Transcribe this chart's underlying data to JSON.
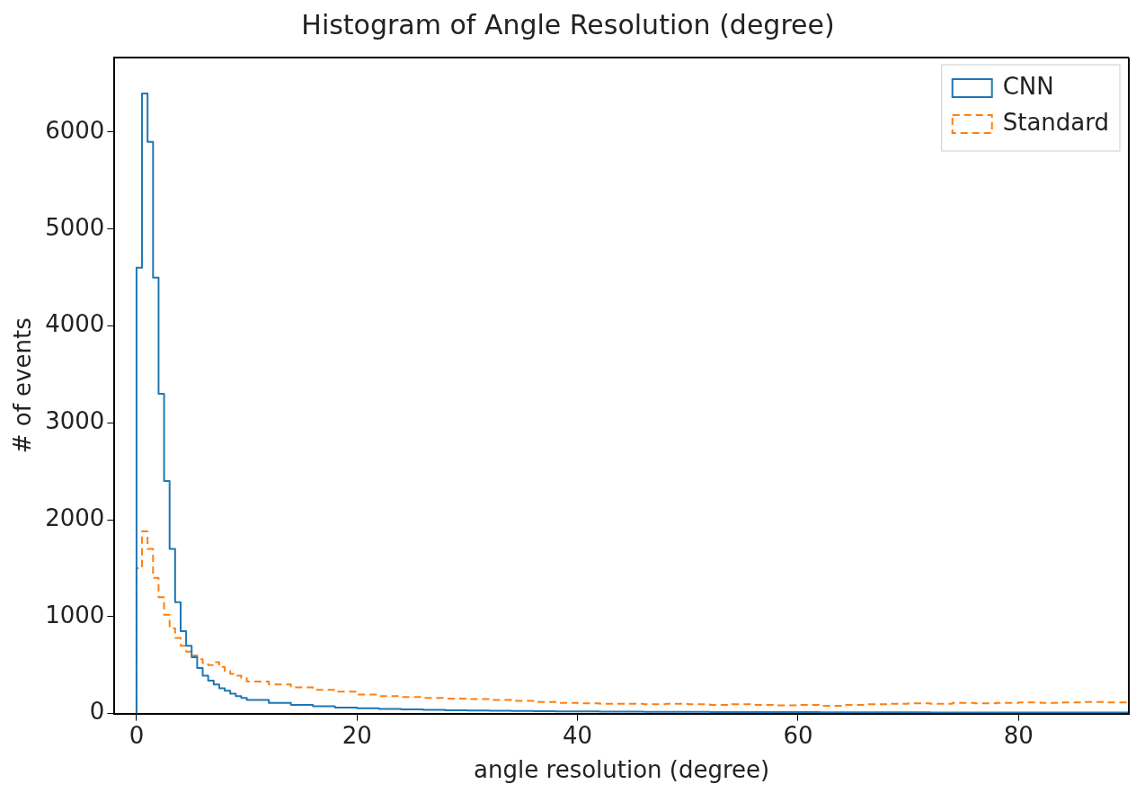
{
  "chart_data": {
    "type": "histogram",
    "title": "Histogram of Angle Resolution (degree)",
    "xlabel": "angle resolution (degree)",
    "ylabel": "# of events",
    "bins": [
      0,
      0.5,
      1,
      1.5,
      2,
      2.5,
      3,
      3.5,
      4,
      4.5,
      5,
      5.5,
      6,
      6.5,
      7,
      7.5,
      8,
      8.5,
      9,
      9.5,
      10,
      12,
      14,
      16,
      18,
      20,
      22,
      24,
      26,
      28,
      30,
      32,
      34,
      36,
      38,
      40,
      42,
      44,
      46,
      48,
      50,
      52,
      54,
      56,
      58,
      60,
      62,
      64,
      66,
      68,
      70,
      72,
      74,
      76,
      78,
      80,
      82,
      84,
      86,
      88,
      90
    ],
    "series": [
      {
        "name": "CNN",
        "color": "#1f77b4",
        "line_style": "solid",
        "values": [
          4600,
          6400,
          5900,
          4500,
          3300,
          2400,
          1700,
          1150,
          850,
          700,
          580,
          470,
          390,
          340,
          300,
          260,
          235,
          205,
          180,
          160,
          140,
          110,
          90,
          75,
          62,
          55,
          48,
          42,
          38,
          34,
          30,
          28,
          26,
          24,
          22,
          21,
          20,
          19,
          18,
          17,
          17,
          16,
          15,
          15,
          14,
          14,
          13,
          13,
          12,
          12,
          12,
          11,
          11,
          11,
          10,
          10,
          10,
          10,
          10,
          10
        ]
      },
      {
        "name": "Standard",
        "color": "#ff7f0e",
        "line_style": "dashed",
        "values": [
          1500,
          1880,
          1700,
          1400,
          1200,
          1020,
          880,
          780,
          700,
          640,
          600,
          560,
          520,
          500,
          530,
          480,
          440,
          410,
          390,
          365,
          330,
          300,
          270,
          245,
          225,
          195,
          180,
          170,
          160,
          155,
          150,
          140,
          130,
          120,
          110,
          105,
          100,
          100,
          95,
          100,
          95,
          90,
          95,
          90,
          85,
          90,
          80,
          90,
          95,
          100,
          105,
          100,
          110,
          105,
          110,
          115,
          110,
          115,
          120,
          115
        ]
      }
    ],
    "xlim": [
      -2,
      90
    ],
    "xticks": [
      0,
      20,
      40,
      60,
      80
    ],
    "ylim": [
      0,
      6770
    ],
    "yticks": [
      0,
      1000,
      2000,
      3000,
      4000,
      5000,
      6000
    ],
    "grid": false,
    "legend": "top right"
  }
}
